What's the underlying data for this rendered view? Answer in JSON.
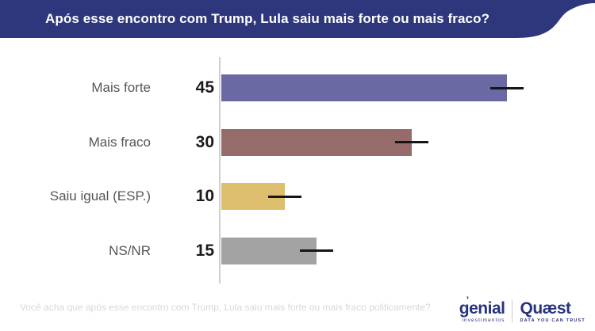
{
  "header": {
    "title": "Após esse encontro com Trump, Lula saiu mais forte ou mais fraco?",
    "background": "#2e377b",
    "text_color": "#ffffff"
  },
  "chart_data": {
    "type": "bar",
    "orientation": "horizontal",
    "categories": [
      "Mais forte",
      "Mais fraco",
      "Saiu igual (ESP.)",
      "NS/NR"
    ],
    "values": [
      45,
      30,
      10,
      15
    ],
    "colors": [
      "#6a69a3",
      "#966c6b",
      "#dcbe6c",
      "#a3a3a3"
    ],
    "title": "Após esse encontro com Trump, Lula saiu mais forte ou mais fraco?",
    "xlabel": "",
    "ylabel": "",
    "xlim": [
      0,
      58
    ],
    "grid": false,
    "legend": "none",
    "annotations": "black dash marker centered on the end of each bar (margin-of-error tick)"
  },
  "footer": {
    "note": "Você acha que após esse encontro com Trump, Lula saiu mais forte ou mais fraco politicamente?"
  },
  "branding": {
    "genial": {
      "name": "genial",
      "accent": "ʼ",
      "tagline": "investimentos",
      "color": "#27337f"
    },
    "quaest": {
      "name": "Quæst",
      "tagline": "DATA YOU CAN TRUST",
      "color": "#27337f"
    }
  }
}
